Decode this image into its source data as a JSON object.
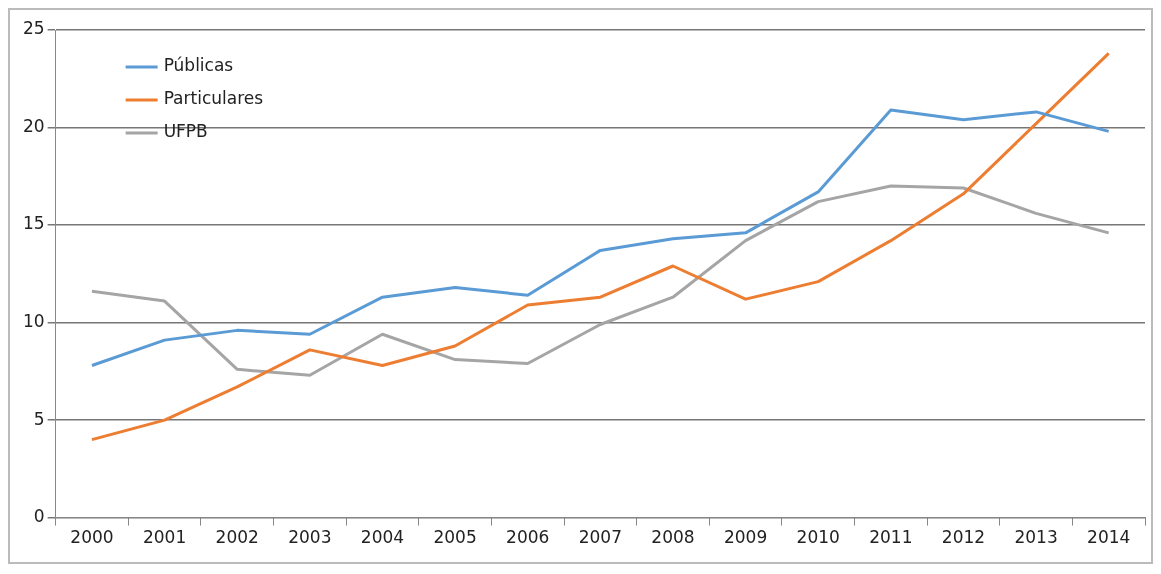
{
  "chart_data": {
    "type": "line",
    "categories": [
      "2000",
      "2001",
      "2002",
      "2003",
      "2004",
      "2005",
      "2006",
      "2007",
      "2008",
      "2009",
      "2010",
      "2011",
      "2012",
      "2013",
      "2014"
    ],
    "series": [
      {
        "name": "Públicas",
        "color": "#5b9bd5",
        "values": [
          7.8,
          9.1,
          9.6,
          9.4,
          11.3,
          11.8,
          11.4,
          13.7,
          14.3,
          14.6,
          16.7,
          20.9,
          20.4,
          20.8,
          19.8
        ]
      },
      {
        "name": "Particulares",
        "color": "#ed7d31",
        "values": [
          4.0,
          5.0,
          6.7,
          8.6,
          7.8,
          8.8,
          10.9,
          11.3,
          12.9,
          11.2,
          12.1,
          14.2,
          16.6,
          20.2,
          23.8
        ]
      },
      {
        "name": "UFPB",
        "color": "#a5a5a5",
        "values": [
          11.6,
          11.1,
          7.6,
          7.3,
          9.4,
          8.1,
          7.9,
          9.9,
          11.3,
          14.2,
          16.2,
          17.0,
          16.9,
          15.6,
          14.6
        ]
      }
    ],
    "ylim": [
      0,
      25
    ],
    "yticks": [
      0,
      5,
      10,
      15,
      20,
      25
    ],
    "grid": "y",
    "legend": "top left",
    "marker": "none",
    "line_style": "solid"
  }
}
